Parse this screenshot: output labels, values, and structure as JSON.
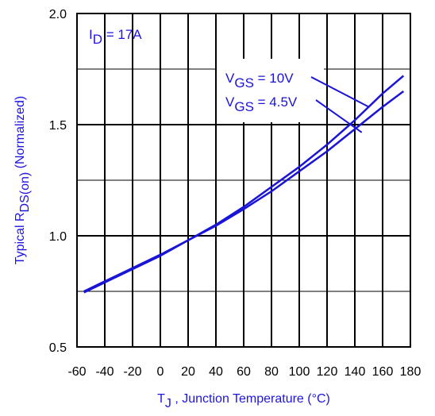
{
  "chart_data": {
    "type": "line",
    "title": "",
    "xlabel": {
      "main": "T",
      "sub": "J",
      "rest": " , Junction Temperature (°C)"
    },
    "ylabel": {
      "main": "Typical R",
      "sub": "DS(on)",
      "rest": " (Normalized)"
    },
    "xlim": [
      -60,
      180
    ],
    "ylim": [
      0.5,
      2.0
    ],
    "x_ticks": [
      -60,
      -40,
      -20,
      0,
      20,
      40,
      60,
      80,
      100,
      120,
      140,
      160,
      180
    ],
    "x_tick_labels": [
      "-60",
      "-40",
      "-20",
      "0",
      "20",
      "40",
      "60",
      "80",
      "100",
      "120",
      "140",
      "160",
      "180"
    ],
    "y_ticks": [
      0.5,
      1.0,
      1.5,
      2.0
    ],
    "y_tick_labels": [
      "0.5",
      "1.0",
      "1.5",
      "2.0"
    ],
    "grid": true,
    "colors": {
      "curve": "#1a14d6",
      "axis_text": "#1e14e0",
      "grid": "#000000"
    },
    "condition_label": {
      "main": "I",
      "sub": "D",
      "rest": " = 17A"
    },
    "series": [
      {
        "name": {
          "main": "V",
          "sub": "GS",
          "rest": " = 10V"
        },
        "x": [
          -55,
          -40,
          -20,
          0,
          20,
          40,
          60,
          80,
          100,
          120,
          140,
          160,
          175
        ],
        "y": [
          0.745,
          0.79,
          0.85,
          0.91,
          0.98,
          1.05,
          1.13,
          1.22,
          1.31,
          1.41,
          1.52,
          1.64,
          1.72
        ]
      },
      {
        "name": {
          "main": "V",
          "sub": "GS",
          "rest": " = 4.5V"
        },
        "x": [
          -55,
          -40,
          -20,
          0,
          20,
          40,
          60,
          80,
          100,
          120,
          140,
          160,
          175
        ],
        "y": [
          0.75,
          0.795,
          0.855,
          0.915,
          0.98,
          1.045,
          1.12,
          1.2,
          1.29,
          1.38,
          1.48,
          1.58,
          1.65
        ]
      }
    ]
  }
}
